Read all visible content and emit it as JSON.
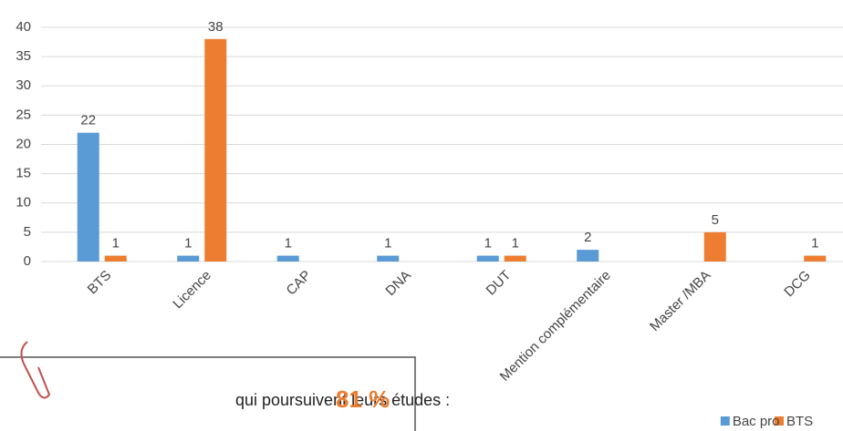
{
  "chart_data": {
    "type": "bar",
    "categories": [
      "BTS",
      "Licence",
      "CAP",
      "DNA",
      "DUT",
      "Mention complémentaire",
      "Master /MBA",
      "DCG"
    ],
    "series": [
      {
        "name": "Bac pro",
        "color": "#5b9bd5",
        "values": [
          22,
          1,
          1,
          1,
          1,
          2,
          null,
          null
        ]
      },
      {
        "name": "BTS",
        "color": "#ed7d31",
        "values": [
          1,
          38,
          null,
          null,
          1,
          null,
          5,
          1
        ]
      }
    ],
    "ylim": [
      0,
      40
    ],
    "yticks": [
      0,
      5,
      10,
      15,
      20,
      25,
      30,
      35,
      40
    ],
    "grid": true,
    "legend": "bottom-right"
  },
  "callout": {
    "text": "qui poursuivent leurs études :",
    "value": "81 %"
  }
}
